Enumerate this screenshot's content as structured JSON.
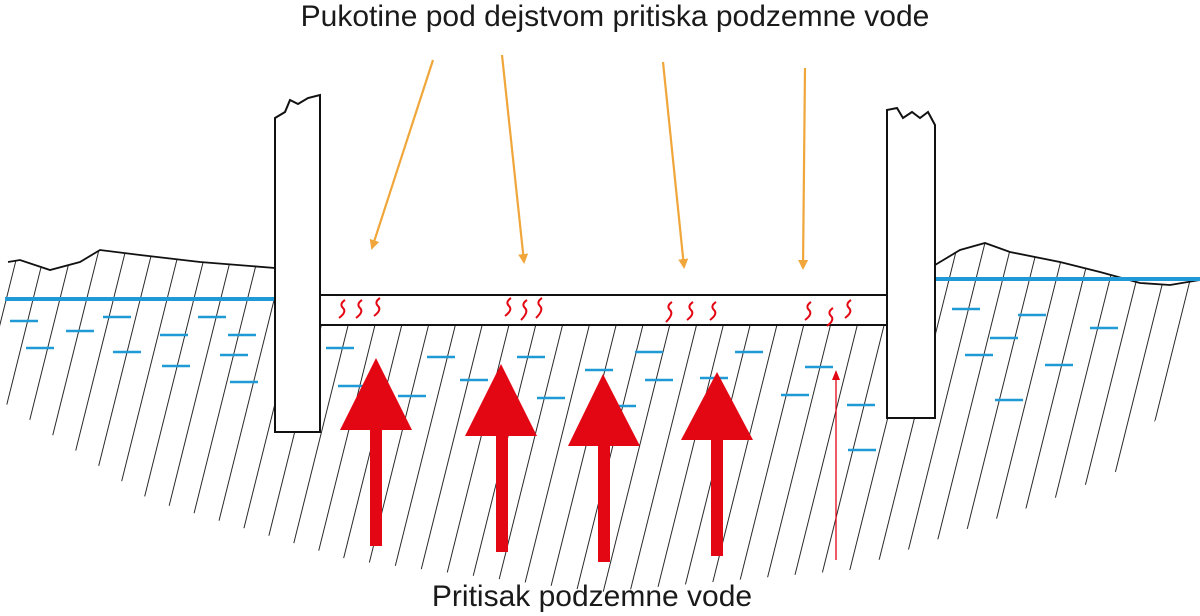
{
  "title": "Pukotine pod dejstvom pritiska podzemne vode",
  "bottom_label": "Pritisak podzemne vode"
}
